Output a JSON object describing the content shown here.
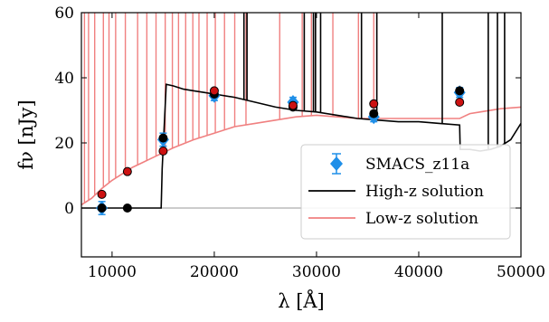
{
  "chart_data": {
    "type": "line",
    "xlabel": "λ [Å]",
    "ylabel": "fν [nJy]",
    "xlim": [
      7000,
      50000
    ],
    "ylim": [
      -15,
      60
    ],
    "xticks": [
      10000,
      20000,
      30000,
      40000,
      50000
    ],
    "yticks": [
      0,
      20,
      40,
      60
    ],
    "xtick_labels": [
      "10000",
      "20000",
      "30000",
      "40000",
      "50000"
    ],
    "ytick_labels": [
      "0",
      "20",
      "40",
      "60"
    ],
    "zero_line": true,
    "legend": {
      "position": "lower-right",
      "entries": [
        {
          "label": "SMACS_z11a",
          "color": "#1f8fe8",
          "kind": "errorbar-diamond"
        },
        {
          "label": "High-z solution",
          "color": "#000000",
          "kind": "line"
        },
        {
          "label": "Low-z solution",
          "color": "#f08080",
          "kind": "line"
        }
      ]
    },
    "observed": {
      "name": "SMACS_z11a",
      "color": "#1f8fe8",
      "x": [
        9000,
        15000,
        20000,
        27700,
        35600,
        44000
      ],
      "y": [
        0,
        21,
        34.5,
        32.5,
        28,
        35.5
      ],
      "yerr": [
        2,
        2,
        1.5,
        1.5,
        1.5,
        1.5
      ]
    },
    "model_photometry": [
      {
        "name": "High-z solution",
        "color": "#000000",
        "x": [
          9000,
          11500,
          15000,
          20000,
          27700,
          35600,
          44000
        ],
        "y": [
          0,
          0,
          21.5,
          35,
          31,
          29,
          36
        ]
      },
      {
        "name": "Low-z solution",
        "color": "#cc1111",
        "x": [
          9000,
          11500,
          15000,
          20000,
          27700,
          35600,
          44000
        ],
        "y": [
          4.2,
          11.2,
          17.5,
          36,
          31.5,
          32,
          32.5
        ]
      }
    ],
    "series": [
      {
        "name": "High-z solution",
        "color": "#000000",
        "x": [
          7000,
          14800,
          14900,
          15300,
          16000,
          17000,
          18000,
          19000,
          20000,
          22000,
          24000,
          26000,
          28000,
          30000,
          32000,
          34000,
          36000,
          38000,
          40000,
          42000,
          44000,
          44050,
          45000,
          46000,
          47000,
          48000,
          49000,
          50000
        ],
        "y": [
          0,
          0,
          12,
          38,
          37.5,
          36.5,
          36,
          35.5,
          35,
          34,
          32.5,
          31,
          30,
          29.5,
          28.5,
          27.5,
          27,
          26.5,
          26.5,
          26,
          25.5,
          18,
          18,
          17.5,
          18,
          19,
          21,
          26
        ]
      },
      {
        "name": "Low-z solution",
        "color": "#f08080",
        "x": [
          7000,
          8000,
          9000,
          10000,
          11000,
          12000,
          13000,
          14000,
          15000,
          16000,
          18000,
          20000,
          22000,
          24000,
          26000,
          28000,
          30000,
          32000,
          34000,
          36000,
          38000,
          40000,
          42000,
          44000,
          45000,
          46000,
          48000,
          50000
        ],
        "y": [
          1,
          3,
          6,
          8.5,
          10.5,
          12.5,
          14,
          15.5,
          17,
          18.5,
          21,
          23,
          25,
          26,
          27,
          28,
          28.5,
          28,
          27.5,
          27.5,
          27.5,
          27.5,
          27.5,
          27.5,
          29,
          29.5,
          30.5,
          31
        ]
      }
    ],
    "emission_lines": {
      "low_z": [
        7300,
        7700,
        8300,
        9150,
        9700,
        10350,
        11300,
        12500,
        13400,
        14300,
        15200,
        15900,
        16500,
        17200,
        17900,
        18500,
        19300,
        20100,
        21000,
        22000,
        23100,
        26400,
        28600,
        29500,
        31600,
        34100,
        35600
      ],
      "high_z": [
        22900,
        23200,
        28800,
        29700,
        29900,
        30400,
        34400,
        35900,
        42300,
        46800,
        47700,
        48400
      ]
    }
  }
}
